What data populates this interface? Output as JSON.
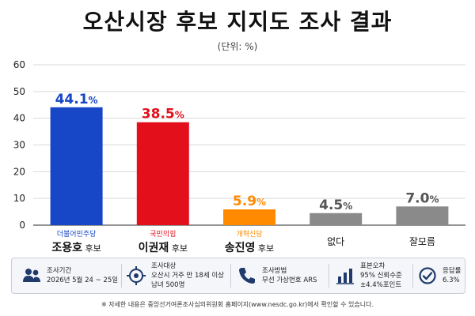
{
  "chart_data": {
    "type": "bar",
    "title": "오산시장 후보 지지도 조사 결과",
    "subtitle": "(단위: %)",
    "ylim": [
      0,
      60
    ],
    "yticks": [
      0,
      10,
      20,
      30,
      40,
      50,
      60
    ],
    "grid": true,
    "bars": [
      {
        "value": 44.1,
        "label": "44.1%",
        "party": "더불어민주당",
        "name": "조용호",
        "suffix": "후보",
        "color": "#1746c6",
        "label_color": "#1746c6",
        "party_color": "#1746c6"
      },
      {
        "value": 38.5,
        "label": "38.5%",
        "party": "국민의힘",
        "name": "이권재",
        "suffix": "후보",
        "color": "#e3101b",
        "label_color": "#e3101b",
        "party_color": "#e3101b"
      },
      {
        "value": 5.9,
        "label": "5.9%",
        "party": "개혁신당",
        "name": "송진영",
        "suffix": "후보",
        "color": "#ff8a00",
        "label_color": "#ff8a00",
        "party_color": "#ff8a00"
      },
      {
        "value": 4.5,
        "label": "4.5%",
        "party": "",
        "name": "없다",
        "suffix": "",
        "color": "#8a8a8a",
        "label_color": "#555555",
        "party_color": "#555555"
      },
      {
        "value": 7.0,
        "label": "7.0%",
        "party": "",
        "name": "잘모름",
        "suffix": "",
        "color": "#8a8a8a",
        "label_color": "#555555",
        "party_color": "#555555"
      }
    ]
  },
  "info": {
    "period_label": "조사기간",
    "period_value": "2026년 5월 24 ~ 25일",
    "target_label": "조사대상",
    "target_line1": "오산시 거주 만 18세 이상",
    "target_line2": "남녀 500명",
    "method_label": "조사방법",
    "method_value": "무선 가상번호 ARS",
    "error_label": "표본오차",
    "error_line1": "95% 신뢰수준",
    "error_line2": "±4.4%포인트",
    "response_label": "응답률",
    "response_value": "6.3%",
    "icons": [
      "people-icon",
      "target-icon",
      "phone-icon",
      "bar-chart-icon",
      "check-circle-icon"
    ]
  },
  "footnote": "※ 자세한 내용은 중앙선거여론조사심의위원회 홈페이지(www.nesdc.go.kr)에서 확인할 수 있습니다."
}
